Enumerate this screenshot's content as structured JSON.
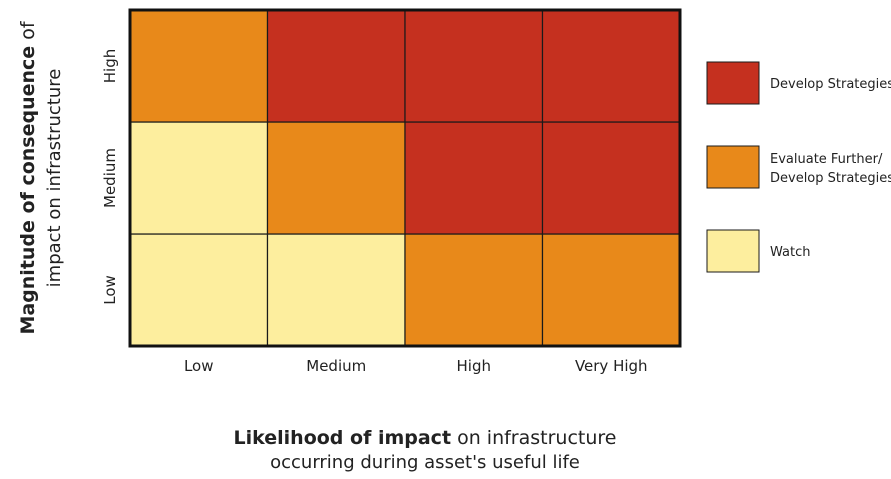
{
  "chart_data": {
    "type": "heatmap",
    "x_categories": [
      "Low",
      "Medium",
      "High",
      "Very High"
    ],
    "y_categories": [
      "Low",
      "Medium",
      "High"
    ],
    "xlabel": {
      "bold": "Likelihood of impact",
      "rest_line1": " on infrastructure",
      "line2": "occurring during asset's useful life"
    },
    "ylabel": {
      "bold": "Magnitude of consequence",
      "rest_line1": " of",
      "line2": "impact on infrastructure"
    },
    "cells": [
      [
        "Watch",
        "Watch",
        "Evaluate Further/ Develop Strategies",
        "Evaluate Further/ Develop Strategies"
      ],
      [
        "Watch",
        "Evaluate Further/ Develop Strategies",
        "Develop Strategies",
        "Develop Strategies"
      ],
      [
        "Evaluate Further/ Develop Strategies",
        "Develop Strategies",
        "Develop Strategies",
        "Develop Strategies"
      ]
    ],
    "legend": [
      {
        "category": "Develop Strategies",
        "lines": [
          "Develop Strategies"
        ],
        "color": "#c5301f"
      },
      {
        "category": "Evaluate Further/ Develop Strategies",
        "lines": [
          "Evaluate Further/",
          "Develop Strategies"
        ],
        "color": "#e8891a"
      },
      {
        "category": "Watch",
        "lines": [
          "Watch"
        ],
        "color": "#fdee9e"
      }
    ],
    "legend_position": "right",
    "grid": true
  },
  "colors": {
    "border": "#111111",
    "cell_line": "#1a1a1a",
    "text": "#222222"
  }
}
